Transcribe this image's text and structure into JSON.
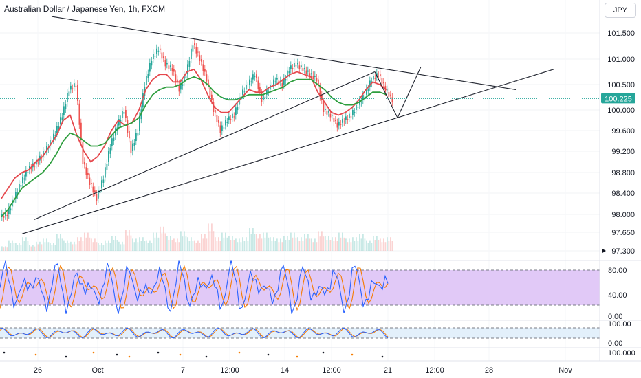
{
  "header": {
    "title": "Australian Dollar / Japanese Yen, 1h, FXCM",
    "currency": "JPY"
  },
  "colors": {
    "up": "#26a69a",
    "down": "#ef5350",
    "ma_fast": "#e5484d",
    "ma_slow": "#2e9e3e",
    "stoch_k": "#2962ff",
    "stoch_d": "#f57c00",
    "stoch_band": "#e1c9f7",
    "stoch_band2": "#e3f0fb",
    "price_badge": "#26a69a",
    "trendline": "#1e222d"
  },
  "chart_data": {
    "type": "line",
    "title": "Australian Dollar / Japanese Yen, 1h, FXCM",
    "price_axis": {
      "ticks": [
        "101.500",
        "101.000",
        "100.500",
        "100.000",
        "99.600",
        "99.200",
        "98.800",
        "98.400",
        "98.000",
        "97.650",
        "97.300"
      ],
      "current_label": "100.225",
      "current_value": 100.225
    },
    "time_axis": {
      "ticks": [
        "26",
        "Oct",
        "7",
        "12:00",
        "14",
        "12:00",
        "21",
        "12:00",
        "28",
        "Nov"
      ]
    },
    "series": [
      {
        "x": [
          0,
          10,
          20,
          30,
          40,
          50,
          60,
          70,
          80,
          90,
          100,
          110,
          120,
          130,
          140,
          150,
          160,
          170,
          180,
          190,
          200,
          210,
          220,
          230,
          240,
          250,
          260,
          270,
          280,
          290,
          300,
          310,
          320,
          330,
          340,
          350,
          360,
          370,
          380,
          390,
          400,
          410,
          420,
          430,
          440,
          450,
          460,
          470,
          480,
          490,
          500,
          510,
          520,
          530,
          540,
          550,
          560
        ],
        "values": [
          98.0,
          98.3,
          98.6,
          98.85,
          98.95,
          99.1,
          99.3,
          99.55,
          99.9,
          100.4,
          100.5,
          99.0,
          98.6,
          98.3,
          98.7,
          99.3,
          99.7,
          100.0,
          99.2,
          99.6,
          100.5,
          101.0,
          101.2,
          100.9,
          100.8,
          100.4,
          100.7,
          101.3,
          101.0,
          100.6,
          100.0,
          99.6,
          99.8,
          99.9,
          100.3,
          100.5,
          100.7,
          100.2,
          100.4,
          100.6,
          100.5,
          100.8,
          100.9,
          100.8,
          100.7,
          100.6,
          100.0,
          99.9,
          99.7,
          99.8,
          99.9,
          100.1,
          100.3,
          100.6,
          100.7,
          100.4,
          100.2
        ]
      },
      {
        "values": [
          98.3,
          98.5,
          98.7,
          98.8,
          98.85,
          99.0,
          99.1,
          99.3,
          99.5,
          99.8,
          99.9,
          99.5,
          99.2,
          99.0,
          99.1,
          99.3,
          99.6,
          99.8,
          99.7,
          99.75,
          100.0,
          100.4,
          100.6,
          100.7,
          100.7,
          100.55,
          100.55,
          100.75,
          100.8,
          100.6,
          100.3,
          100.05,
          99.95,
          99.95,
          100.1,
          100.25,
          100.4,
          100.35,
          100.35,
          100.45,
          100.5,
          100.6,
          100.7,
          100.75,
          100.7,
          100.65,
          100.35,
          100.15,
          99.95,
          99.9,
          99.95,
          100.05,
          100.2,
          100.4,
          100.55,
          100.5,
          100.4
        ]
      },
      {
        "values": [
          97.95,
          98.1,
          98.3,
          98.5,
          98.6,
          98.7,
          98.8,
          98.95,
          99.15,
          99.4,
          99.55,
          99.5,
          99.4,
          99.3,
          99.3,
          99.35,
          99.5,
          99.65,
          99.7,
          99.75,
          99.85,
          100.1,
          100.3,
          100.4,
          100.45,
          100.45,
          100.5,
          100.6,
          100.65,
          100.6,
          100.5,
          100.35,
          100.25,
          100.2,
          100.2,
          100.25,
          100.3,
          100.3,
          100.3,
          100.35,
          100.4,
          100.45,
          100.55,
          100.6,
          100.6,
          100.6,
          100.5,
          100.4,
          100.25,
          100.15,
          100.1,
          100.1,
          100.15,
          100.25,
          100.35,
          100.35,
          100.3
        ]
      }
    ],
    "trendlines": [
      {
        "x1": 75,
        "y1": 101.72,
        "x2": 750,
        "y2": 100.4
      },
      {
        "x1": 32,
        "y1": 97.62,
        "x2": 805,
        "y2": 100.8
      },
      {
        "x1": 50,
        "y1": 97.9,
        "x2": 545,
        "y2": 100.75
      },
      {
        "x1": 545,
        "y1": 100.75,
        "x2": 578,
        "y2": 99.85
      },
      {
        "x1": 578,
        "y1": 99.85,
        "x2": 612,
        "y2": 100.85
      }
    ],
    "indicators": [
      {
        "type": "line",
        "ticks": [
          "80.00",
          "40.00",
          "0.00"
        ],
        "band": [
          20,
          80
        ],
        "ylim": [
          0,
          100
        ]
      },
      {
        "type": "line",
        "ticks": [
          "100.00",
          "0.00"
        ],
        "band": [
          20,
          80
        ],
        "ylim": [
          0,
          100
        ]
      },
      {
        "type": "scatter",
        "ticks": [
          "100.000"
        ]
      }
    ]
  }
}
